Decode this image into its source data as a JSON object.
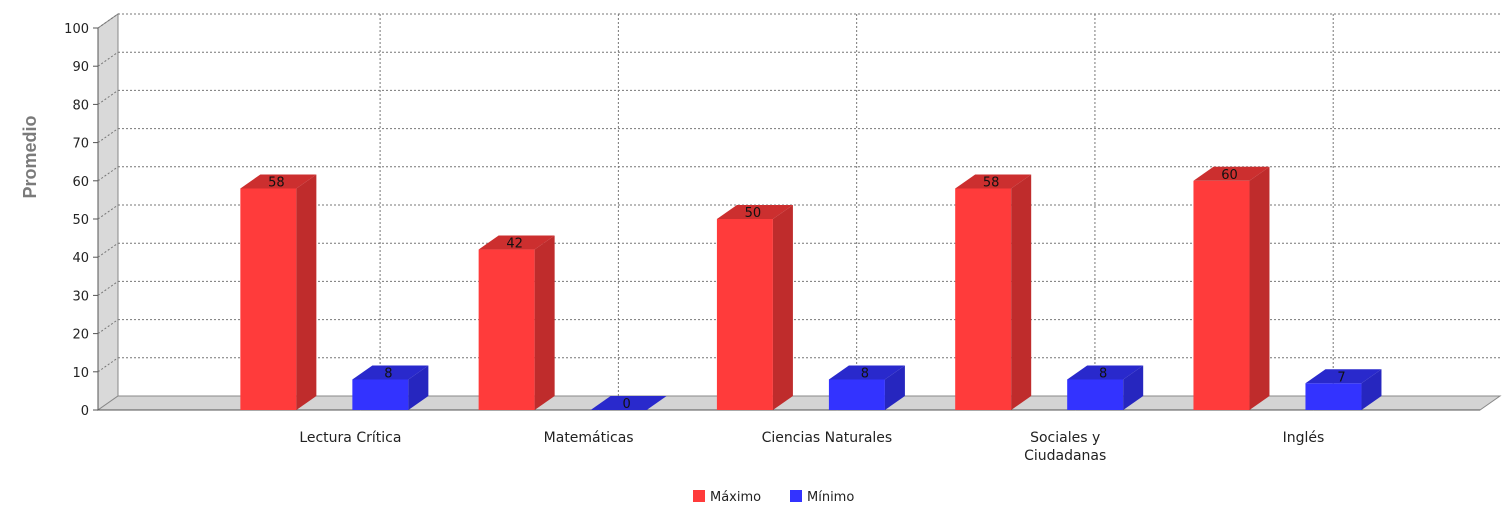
{
  "chart_data": {
    "type": "bar",
    "ylabel": "Promedio",
    "xlabel": "",
    "title": "",
    "ylim": [
      0,
      100
    ],
    "yticks": [
      0,
      10,
      20,
      30,
      40,
      50,
      60,
      70,
      80,
      90,
      100
    ],
    "grid": true,
    "legend_position": "bottom",
    "three_d": true,
    "categories": [
      "Lectura Crítica",
      "Matemáticas",
      "Ciencias Naturales",
      "Sociales y Ciudadanas",
      "Inglés"
    ],
    "series": [
      {
        "name": "Máximo",
        "color": "#ff3b3b",
        "values": [
          58,
          42,
          50,
          58,
          60
        ]
      },
      {
        "name": "Mínimo",
        "color": "#3333ff",
        "values": [
          8,
          0,
          8,
          8,
          7
        ]
      }
    ]
  }
}
